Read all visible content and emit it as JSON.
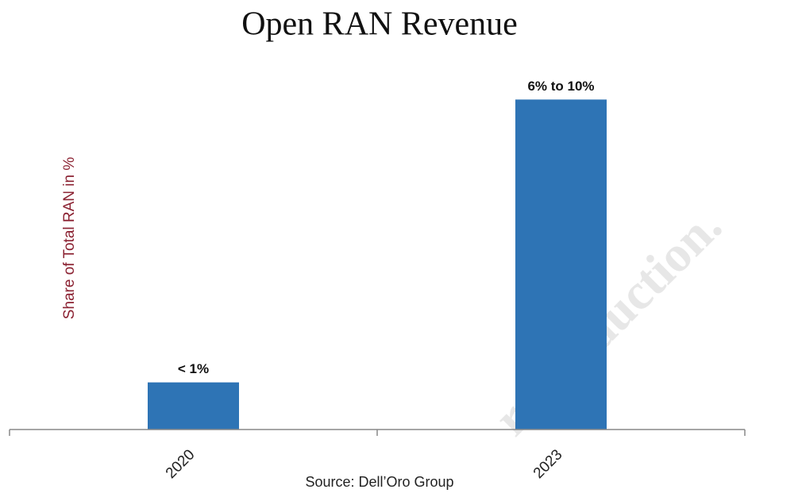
{
  "chart_data": {
    "type": "bar",
    "title": "Open RAN Revenue",
    "y_label": "Share of Total RAN in %",
    "categories": [
      "2020",
      "2023"
    ],
    "values": [
      1,
      7
    ],
    "value_labels": [
      "< 1%",
      "6% to 10%"
    ],
    "color": "#2e74b5",
    "ylim": [
      0,
      8
    ],
    "source": "Source: Dell’Oro Group",
    "watermark": "reproduction."
  }
}
